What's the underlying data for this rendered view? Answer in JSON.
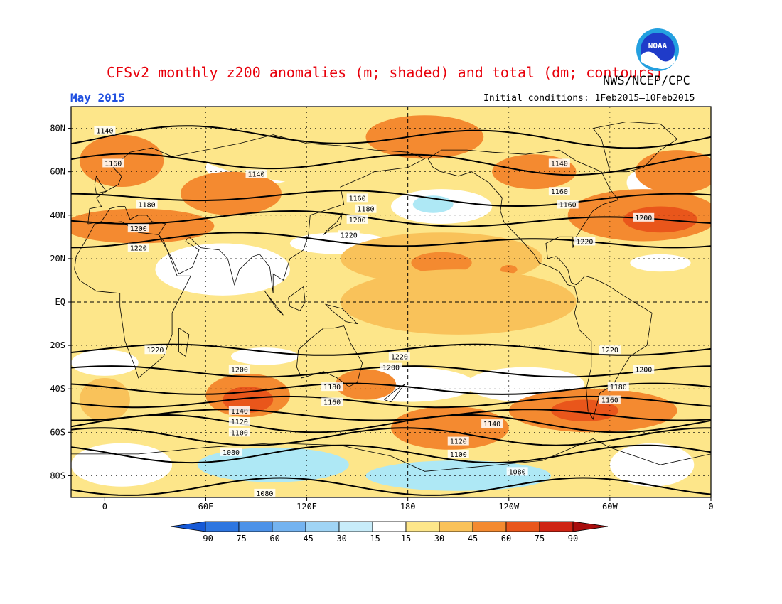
{
  "title": "CFSv2 monthly z200 anomalies (m; shaded) and total (dm; contours)",
  "organization": "NWS/NCEP/CPC",
  "period": "May 2015",
  "initial_conditions": "Initial conditions: 1Feb2015–10Feb2015",
  "logo_text": "NOAA",
  "colors": {
    "ocean_neg": "#aee8f5",
    "pos_15_30": "#fde68a",
    "pos_30_45": "#f9c25a",
    "pos_45_60": "#f48a30",
    "pos_60_75": "#e9561b",
    "pos_75_90": "#cf2414",
    "title_red": "#e8000b",
    "subtitle_blue": "#1f4fe0"
  },
  "map": {
    "lon_ticks": [
      "0",
      "60E",
      "120E",
      "180",
      "120W",
      "60W",
      "0"
    ],
    "lat_ticks": [
      "80N",
      "60N",
      "40N",
      "20N",
      "EQ",
      "20S",
      "40S",
      "60S",
      "80S"
    ]
  },
  "colorbar": {
    "labels": [
      "-90",
      "-75",
      "-60",
      "-45",
      "-30",
      "-15",
      "15",
      "30",
      "45",
      "60",
      "75",
      "90"
    ],
    "colors": [
      "#1659d6",
      "#2e76e0",
      "#4d92e8",
      "#74b3f0",
      "#a0d4f5",
      "#c8ecf9",
      "#ffffff",
      "#fde68a",
      "#f9c25a",
      "#f48a30",
      "#e9561b",
      "#cf2414",
      "#a80e0e"
    ]
  },
  "contours": [
    {
      "label": "1140",
      "lat": 76
    },
    {
      "label": "1160",
      "lat": 64
    },
    {
      "label": "1180",
      "lat": 48
    },
    {
      "label": "1200",
      "lat": 38
    },
    {
      "label": "1220",
      "lat": 28
    },
    {
      "label": "1220",
      "lat": -22
    },
    {
      "label": "1200",
      "lat": -32
    },
    {
      "label": "1180",
      "lat": -40
    },
    {
      "label": "1160",
      "lat": -46
    },
    {
      "label": "1140",
      "lat": -52
    },
    {
      "label": "1120",
      "lat": -56
    },
    {
      "label": "1100",
      "lat": -62
    },
    {
      "label": "1080",
      "lat": -70
    },
    {
      "label": "1080",
      "lat": -85
    }
  ],
  "contour_labels": [
    {
      "text": "1140",
      "lon": 0,
      "lat": 79
    },
    {
      "text": "1160",
      "lon": 5,
      "lat": 64
    },
    {
      "text": "1140",
      "lon": 90,
      "lat": 59
    },
    {
      "text": "1180",
      "lon": 25,
      "lat": 45
    },
    {
      "text": "1200",
      "lon": 20,
      "lat": 34
    },
    {
      "text": "1220",
      "lon": 20,
      "lat": 25
    },
    {
      "text": "1160",
      "lon": 150,
      "lat": 48
    },
    {
      "text": "1180",
      "lon": 155,
      "lat": 43
    },
    {
      "text": "1200",
      "lon": 150,
      "lat": 38
    },
    {
      "text": "1220",
      "lon": 145,
      "lat": 31
    },
    {
      "text": "1140",
      "lon": 270,
      "lat": 64
    },
    {
      "text": "1160",
      "lon": 270,
      "lat": 51
    },
    {
      "text": "1160",
      "lon": 275,
      "lat": 45
    },
    {
      "text": "1200",
      "lon": 320,
      "lat": 39
    },
    {
      "text": "1220",
      "lon": 285,
      "lat": 28
    },
    {
      "text": "1220",
      "lon": 30,
      "lat": -22
    },
    {
      "text": "1220",
      "lon": 175,
      "lat": -25
    },
    {
      "text": "1220",
      "lon": 300,
      "lat": -22
    },
    {
      "text": "1200",
      "lon": 80,
      "lat": -31
    },
    {
      "text": "1200",
      "lon": 170,
      "lat": -30
    },
    {
      "text": "1200",
      "lon": 320,
      "lat": -31
    },
    {
      "text": "1180",
      "lon": 135,
      "lat": -39
    },
    {
      "text": "1180",
      "lon": 305,
      "lat": -39
    },
    {
      "text": "1160",
      "lon": 135,
      "lat": -46
    },
    {
      "text": "1160",
      "lon": 300,
      "lat": -45
    },
    {
      "text": "1140",
      "lon": 80,
      "lat": -50
    },
    {
      "text": "1140",
      "lon": 230,
      "lat": -56
    },
    {
      "text": "1120",
      "lon": 80,
      "lat": -55
    },
    {
      "text": "1120",
      "lon": 210,
      "lat": -64
    },
    {
      "text": "1100",
      "lon": 80,
      "lat": -60
    },
    {
      "text": "1100",
      "lon": 210,
      "lat": -70
    },
    {
      "text": "1080",
      "lon": 75,
      "lat": -69
    },
    {
      "text": "1080",
      "lon": 245,
      "lat": -78
    },
    {
      "text": "1080",
      "lon": 95,
      "lat": -88
    }
  ],
  "anomaly_regions": [
    {
      "lon": 180,
      "lat": 72,
      "rlon": 130,
      "rlat": 20,
      "level": "pos_15_30"
    },
    {
      "lon": 190,
      "lat": 76,
      "rlon": 35,
      "rlat": 10,
      "level": "pos_45_60"
    },
    {
      "lon": 255,
      "lat": 60,
      "rlon": 25,
      "rlat": 8,
      "level": "pos_45_60"
    },
    {
      "lon": 10,
      "lat": 65,
      "rlon": 25,
      "rlat": 12,
      "level": "pos_45_60"
    },
    {
      "lon": 75,
      "lat": 50,
      "rlon": 30,
      "rlat": 10,
      "level": "pos_45_60"
    },
    {
      "lon": 20,
      "lat": 35,
      "rlon": 45,
      "rlat": 8,
      "level": "pos_45_60"
    },
    {
      "lon": 320,
      "lat": 40,
      "rlon": 45,
      "rlat": 12,
      "level": "pos_45_60"
    },
    {
      "lon": 330,
      "lat": 38,
      "rlon": 22,
      "rlat": 6,
      "level": "pos_60_75"
    },
    {
      "lon": 340,
      "lat": 60,
      "rlon": 25,
      "rlat": 10,
      "level": "pos_45_60"
    },
    {
      "lon": 200,
      "lat": 20,
      "rlon": 60,
      "rlat": 12,
      "level": "pos_30_45"
    },
    {
      "lon": 200,
      "lat": 18,
      "rlon": 18,
      "rlat": 5,
      "level": "pos_45_60"
    },
    {
      "lon": 240,
      "lat": 15,
      "rlon": 5,
      "rlat": 2,
      "level": "pos_45_60"
    },
    {
      "lon": 210,
      "lat": 0,
      "rlon": 70,
      "rlat": 15,
      "level": "pos_30_45"
    },
    {
      "lon": 85,
      "lat": -43,
      "rlon": 25,
      "rlat": 10,
      "level": "pos_45_60"
    },
    {
      "lon": 85,
      "lat": -45,
      "rlon": 15,
      "rlat": 6,
      "level": "pos_60_75"
    },
    {
      "lon": 155,
      "lat": -38,
      "rlon": 18,
      "rlat": 7,
      "level": "pos_45_60"
    },
    {
      "lon": 205,
      "lat": -58,
      "rlon": 35,
      "rlat": 10,
      "level": "pos_45_60"
    },
    {
      "lon": 290,
      "lat": -50,
      "rlon": 50,
      "rlat": 10,
      "level": "pos_45_60"
    },
    {
      "lon": 285,
      "lat": -50,
      "rlon": 20,
      "rlat": 5,
      "level": "pos_60_75"
    },
    {
      "lon": 0,
      "lat": -45,
      "rlon": 15,
      "rlat": 10,
      "level": "pos_30_45"
    }
  ],
  "negative_regions": [
    {
      "lon": 195,
      "lat": 45,
      "rlon": 12,
      "rlat": 4
    },
    {
      "lon": 100,
      "lat": -75,
      "rlon": 45,
      "rlat": 8
    },
    {
      "lon": 210,
      "lat": -80,
      "rlon": 55,
      "rlat": 7
    }
  ],
  "neutral_regions": [
    {
      "lon": 70,
      "lat": 15,
      "rlon": 40,
      "rlat": 12
    },
    {
      "lon": 140,
      "lat": 27,
      "rlon": 30,
      "rlat": 5
    },
    {
      "lon": 330,
      "lat": 18,
      "rlon": 18,
      "rlat": 4
    },
    {
      "lon": 90,
      "lat": 62,
      "rlon": 30,
      "rlat": 8
    },
    {
      "lon": 320,
      "lat": 55,
      "rlon": 10,
      "rlat": 6
    },
    {
      "lon": 200,
      "lat": 44,
      "rlon": 30,
      "rlat": 8
    },
    {
      "lon": 180,
      "lat": -38,
      "rlon": 40,
      "rlat": 8
    },
    {
      "lon": 0,
      "lat": -28,
      "rlon": 20,
      "rlat": 6
    },
    {
      "lon": 250,
      "lat": -38,
      "rlon": 35,
      "rlat": 8
    },
    {
      "lon": 10,
      "lat": -75,
      "rlon": 30,
      "rlat": 10
    },
    {
      "lon": 325,
      "lat": -75,
      "rlon": 25,
      "rlat": 10
    },
    {
      "lon": 95,
      "lat": -25,
      "rlon": 20,
      "rlat": 4
    }
  ]
}
